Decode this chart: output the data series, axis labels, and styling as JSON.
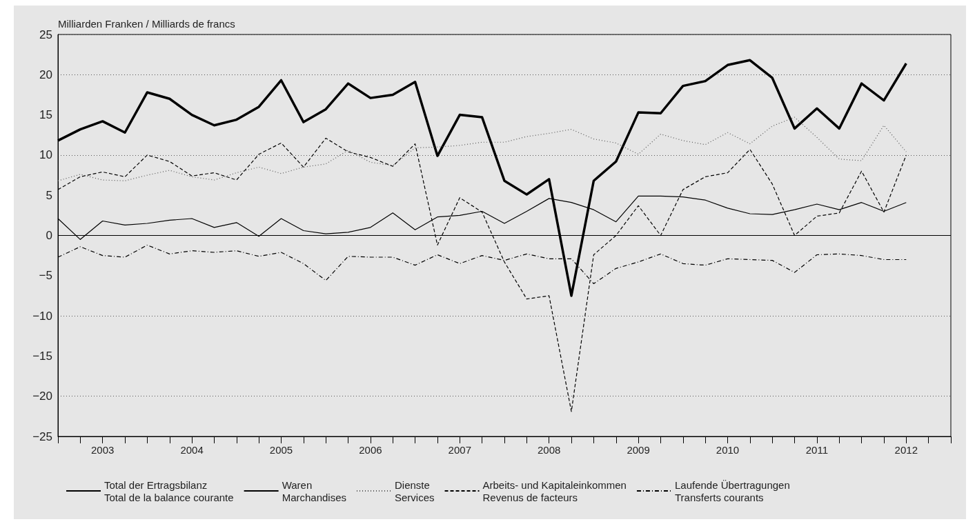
{
  "chart_data": {
    "type": "line",
    "ylabel": "Milliarden Franken / Milliards de francs",
    "x": [
      2003,
      2003.25,
      2003.5,
      2003.75,
      2004,
      2004.25,
      2004.5,
      2004.75,
      2005,
      2005.25,
      2005.5,
      2005.75,
      2006,
      2006.25,
      2006.5,
      2006.75,
      2007,
      2007.25,
      2007.5,
      2007.75,
      2008,
      2008.25,
      2008.5,
      2008.75,
      2009,
      2009.25,
      2009.5,
      2009.75,
      2010,
      2010.25,
      2010.5,
      2010.75,
      2011,
      2011.25,
      2011.5,
      2011.75,
      2012,
      2012.25,
      2012.5
    ],
    "series": [
      {
        "name": "Total der Ertragsbilanz\nTotal de la balance courante",
        "color": "#000000",
        "line_style": "solid",
        "values": [
          11.8,
          13.2,
          14.2,
          12.8,
          17.8,
          17.0,
          15.0,
          13.7,
          14.4,
          16.0,
          19.3,
          14.1,
          15.7,
          18.9,
          17.1,
          17.5,
          19.1,
          9.9,
          15.0,
          14.7,
          6.8,
          5.1,
          7.0,
          -7.5,
          6.8,
          9.2,
          15.3,
          15.2,
          18.6,
          19.2,
          21.2,
          21.8,
          19.6,
          13.3,
          15.8,
          13.3,
          18.9,
          16.8,
          21.4
        ]
      },
      {
        "name": "Waren\nMarchandises",
        "color": "#000000",
        "line_style": "solid",
        "values": [
          2.1,
          -0.5,
          1.8,
          1.3,
          1.5,
          1.9,
          2.1,
          1.0,
          1.6,
          -0.1,
          2.1,
          0.6,
          0.2,
          0.4,
          1.0,
          2.8,
          0.7,
          2.3,
          2.5,
          3.0,
          1.5,
          3.0,
          4.6,
          4.1,
          3.2,
          1.7,
          4.9,
          4.9,
          4.8,
          4.4,
          3.4,
          2.7,
          2.6,
          3.2,
          3.9,
          3.2,
          4.1,
          3.0,
          4.1
        ]
      },
      {
        "name": "Dienste\nServices",
        "color": "#555555",
        "line_style": "dotted",
        "values": [
          6.8,
          7.6,
          6.9,
          6.8,
          7.5,
          8.1,
          7.3,
          6.9,
          7.8,
          8.5,
          7.7,
          8.5,
          8.9,
          10.6,
          9.1,
          8.7,
          10.9,
          11.0,
          11.2,
          11.6,
          11.6,
          12.3,
          12.7,
          13.2,
          12.0,
          11.5,
          10.1,
          12.6,
          11.8,
          11.3,
          12.8,
          11.4,
          13.6,
          14.7,
          12.2,
          9.5,
          9.3,
          13.7,
          10.4
        ]
      },
      {
        "name": "Arbeits- und Kapitaleinkommen\nRevenus de facteurs",
        "color": "#000000",
        "line_style": "dashed",
        "values": [
          5.7,
          7.3,
          7.9,
          7.3,
          10.0,
          9.2,
          7.4,
          7.8,
          6.9,
          10.1,
          11.5,
          8.5,
          12.1,
          10.4,
          9.7,
          8.6,
          11.4,
          -1.2,
          4.7,
          2.9,
          -3.3,
          -7.9,
          -7.5,
          -21.9,
          -2.4,
          0.0,
          3.7,
          0.0,
          5.7,
          7.3,
          7.8,
          10.7,
          6.4,
          0.0,
          2.4,
          2.8,
          8.0,
          2.9,
          10.0
        ]
      },
      {
        "name": "Laufende Übertragungen\nTransferts courants",
        "color": "#000000",
        "line_style": "dashdot",
        "values": [
          -2.7,
          -1.4,
          -2.5,
          -2.7,
          -1.2,
          -2.3,
          -1.9,
          -2.1,
          -1.9,
          -2.6,
          -2.1,
          -3.5,
          -5.6,
          -2.6,
          -2.7,
          -2.7,
          -3.7,
          -2.4,
          -3.5,
          -2.5,
          -3.1,
          -2.3,
          -2.9,
          -2.9,
          -6.0,
          -4.1,
          -3.3,
          -2.3,
          -3.5,
          -3.7,
          -2.9,
          -3.0,
          -3.1,
          -4.6,
          -2.4,
          -2.3,
          -2.5,
          -3.0,
          -3.0
        ]
      }
    ],
    "xlim": [
      2003,
      2013
    ],
    "xticks": [
      {
        "value": 2003,
        "label": null
      },
      {
        "value": 2003.25,
        "label": null
      },
      {
        "value": 2003.5,
        "label": "2003"
      },
      {
        "value": 2003.75,
        "label": null
      },
      {
        "value": 2004,
        "label": null
      },
      {
        "value": 2004.25,
        "label": null
      },
      {
        "value": 2004.5,
        "label": "2004"
      },
      {
        "value": 2004.75,
        "label": null
      },
      {
        "value": 2005,
        "label": null
      },
      {
        "value": 2005.25,
        "label": null
      },
      {
        "value": 2005.5,
        "label": "2005"
      },
      {
        "value": 2005.75,
        "label": null
      },
      {
        "value": 2006,
        "label": null
      },
      {
        "value": 2006.25,
        "label": null
      },
      {
        "value": 2006.5,
        "label": "2006"
      },
      {
        "value": 2006.75,
        "label": null
      },
      {
        "value": 2007,
        "label": null
      },
      {
        "value": 2007.25,
        "label": null
      },
      {
        "value": 2007.5,
        "label": "2007"
      },
      {
        "value": 2007.75,
        "label": null
      },
      {
        "value": 2008,
        "label": null
      },
      {
        "value": 2008.25,
        "label": null
      },
      {
        "value": 2008.5,
        "label": "2008"
      },
      {
        "value": 2008.75,
        "label": null
      },
      {
        "value": 2009,
        "label": null
      },
      {
        "value": 2009.25,
        "label": null
      },
      {
        "value": 2009.5,
        "label": "2009"
      },
      {
        "value": 2009.75,
        "label": null
      },
      {
        "value": 2010,
        "label": null
      },
      {
        "value": 2010.25,
        "label": null
      },
      {
        "value": 2010.5,
        "label": "2010"
      },
      {
        "value": 2010.75,
        "label": null
      },
      {
        "value": 2011,
        "label": null
      },
      {
        "value": 2011.25,
        "label": null
      },
      {
        "value": 2011.5,
        "label": "2011"
      },
      {
        "value": 2011.75,
        "label": null
      },
      {
        "value": 2012,
        "label": null
      },
      {
        "value": 2012.25,
        "label": null
      },
      {
        "value": 2012.5,
        "label": "2012"
      },
      {
        "value": 2012.75,
        "label": null
      },
      {
        "value": 2013,
        "label": null
      }
    ],
    "ylim": [
      -25,
      25
    ],
    "yticks": [
      {
        "value": -25,
        "label": "−25"
      },
      {
        "value": -20,
        "label": "−20"
      },
      {
        "value": -15,
        "label": "−15"
      },
      {
        "value": -10,
        "label": "−10"
      },
      {
        "value": -5,
        "label": "−5"
      },
      0,
      5,
      10,
      15,
      20,
      25
    ],
    "ref_lines": [
      {
        "axis": "y",
        "value": 0,
        "label": null,
        "color": "#000000",
        "line_style": "solid"
      }
    ],
    "grid": "y",
    "legend": "bottom",
    "marker": "none"
  }
}
